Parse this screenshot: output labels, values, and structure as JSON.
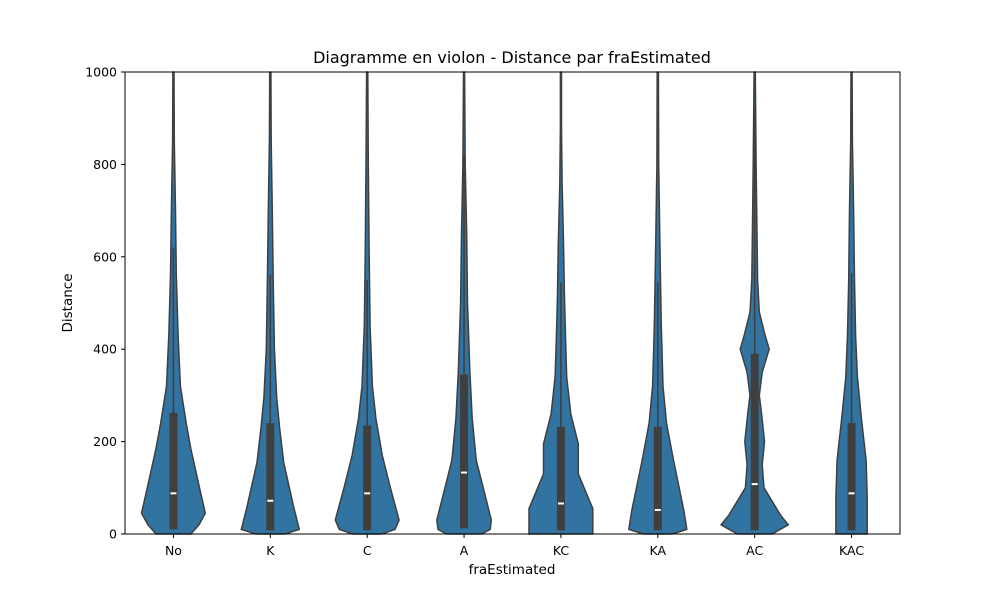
{
  "chart_data": {
    "type": "violin",
    "title": "Diagramme en violon - Distance par fraEstimated",
    "xlabel": "fraEstimated",
    "ylabel": "Distance",
    "ylim": [
      0,
      1000
    ],
    "yticks": [
      0,
      200,
      400,
      600,
      800,
      1000
    ],
    "categories": [
      "No",
      "K",
      "C",
      "A",
      "KC",
      "KA",
      "AC",
      "KAC"
    ],
    "colors": {
      "violin_fill": "#3274a1",
      "violin_edge": "#3f3f3f",
      "box": "#3f3f3f",
      "median": "#ffffff"
    },
    "violins": [
      {
        "category": "No",
        "q1": 10,
        "median": 88,
        "q3": 262,
        "whisker_high": 620,
        "profile": [
          [
            0,
            0.3
          ],
          [
            20,
            0.44
          ],
          [
            45,
            0.55
          ],
          [
            100,
            0.45
          ],
          [
            185,
            0.3
          ],
          [
            240,
            0.22
          ],
          [
            320,
            0.12
          ],
          [
            430,
            0.08
          ],
          [
            560,
            0.05
          ],
          [
            700,
            0.035
          ],
          [
            850,
            0.015
          ],
          [
            1000,
            0.01
          ]
        ]
      },
      {
        "category": "K",
        "q1": 8,
        "median": 72,
        "q3": 240,
        "whisker_high": 560,
        "profile": [
          [
            0,
            0.25
          ],
          [
            10,
            0.5
          ],
          [
            60,
            0.4
          ],
          [
            155,
            0.23
          ],
          [
            230,
            0.16
          ],
          [
            295,
            0.11
          ],
          [
            400,
            0.07
          ],
          [
            550,
            0.05
          ],
          [
            700,
            0.035
          ],
          [
            850,
            0.015
          ],
          [
            1000,
            0.01
          ]
        ]
      },
      {
        "category": "C",
        "q1": 8,
        "median": 88,
        "q3": 235,
        "whisker_high": 550,
        "profile": [
          [
            0,
            0.25
          ],
          [
            10,
            0.48
          ],
          [
            30,
            0.55
          ],
          [
            100,
            0.4
          ],
          [
            170,
            0.26
          ],
          [
            250,
            0.15
          ],
          [
            320,
            0.09
          ],
          [
            450,
            0.05
          ],
          [
            600,
            0.035
          ],
          [
            800,
            0.02
          ],
          [
            1000,
            0.01
          ]
        ]
      },
      {
        "category": "A",
        "q1": 12,
        "median": 133,
        "q3": 345,
        "whisker_high": 820,
        "profile": [
          [
            0,
            0.3
          ],
          [
            10,
            0.45
          ],
          [
            30,
            0.47
          ],
          [
            90,
            0.35
          ],
          [
            160,
            0.21
          ],
          [
            250,
            0.14
          ],
          [
            350,
            0.1
          ],
          [
            500,
            0.06
          ],
          [
            650,
            0.045
          ],
          [
            800,
            0.02
          ],
          [
            1000,
            0.01
          ]
        ]
      },
      {
        "category": "KC",
        "q1": 8,
        "median": 66,
        "q3": 232,
        "whisker_high": 545,
        "profile": [
          [
            0,
            0.55
          ],
          [
            55,
            0.55
          ],
          [
            70,
            0.5
          ],
          [
            130,
            0.3
          ],
          [
            195,
            0.3
          ],
          [
            260,
            0.17
          ],
          [
            340,
            0.1
          ],
          [
            420,
            0.08
          ],
          [
            520,
            0.06
          ],
          [
            630,
            0.045
          ],
          [
            760,
            0.02
          ],
          [
            880,
            0.01
          ],
          [
            1000,
            0.01
          ]
        ]
      },
      {
        "category": "KA",
        "q1": 8,
        "median": 52,
        "q3": 232,
        "whisker_high": 545,
        "profile": [
          [
            0,
            0.25
          ],
          [
            10,
            0.5
          ],
          [
            50,
            0.45
          ],
          [
            160,
            0.27
          ],
          [
            240,
            0.15
          ],
          [
            320,
            0.09
          ],
          [
            450,
            0.06
          ],
          [
            600,
            0.04
          ],
          [
            800,
            0.015
          ],
          [
            1000,
            0.01
          ]
        ]
      },
      {
        "category": "AC",
        "q1": 8,
        "median": 108,
        "q3": 390,
        "whisker_high": 920,
        "profile": [
          [
            0,
            0.3
          ],
          [
            20,
            0.58
          ],
          [
            40,
            0.45
          ],
          [
            100,
            0.16
          ],
          [
            150,
            0.13
          ],
          [
            200,
            0.17
          ],
          [
            260,
            0.12
          ],
          [
            300,
            0.08
          ],
          [
            350,
            0.13
          ],
          [
            400,
            0.25
          ],
          [
            430,
            0.18
          ],
          [
            480,
            0.08
          ],
          [
            550,
            0.05
          ],
          [
            650,
            0.04
          ],
          [
            800,
            0.025
          ],
          [
            1000,
            0.01
          ]
        ]
      },
      {
        "category": "KAC",
        "q1": 8,
        "median": 88,
        "q3": 240,
        "whisker_high": 565,
        "profile": [
          [
            0,
            0.27
          ],
          [
            80,
            0.27
          ],
          [
            160,
            0.25
          ],
          [
            250,
            0.17
          ],
          [
            340,
            0.1
          ],
          [
            430,
            0.07
          ],
          [
            550,
            0.05
          ],
          [
            700,
            0.035
          ],
          [
            850,
            0.015
          ],
          [
            1000,
            0.01
          ]
        ]
      }
    ]
  }
}
